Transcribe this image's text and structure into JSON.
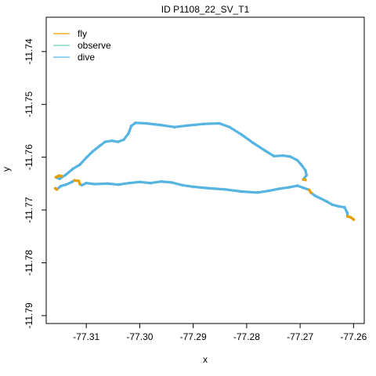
{
  "chart_data": {
    "type": "line",
    "title": "ID P1108_22_SV_T1",
    "xlabel": "x",
    "ylabel": "y",
    "xlim": [
      -77.3175,
      -77.258
    ],
    "ylim": [
      -11.7915,
      -11.7335
    ],
    "xticks": [
      -77.31,
      -77.3,
      -77.29,
      -77.28,
      -77.27,
      -77.26
    ],
    "xtick_labels": [
      "-77.31",
      "-77.30",
      "-77.29",
      "-77.28",
      "-77.27",
      "-77.26"
    ],
    "yticks": [
      -11.74,
      -11.75,
      -11.76,
      -11.77,
      -11.78,
      -11.79
    ],
    "ytick_labels": [
      "-11.74",
      "-11.75",
      "-11.76",
      "-11.77",
      "-11.78",
      "-11.79"
    ],
    "legend_position": "top-left",
    "series": [
      {
        "name": "fly",
        "color": "#E69F00",
        "segments": [
          [
            [
              -77.3157,
              -11.7638
            ],
            [
              -77.3151,
              -11.7635
            ],
            [
              -77.3146,
              -11.7636
            ]
          ],
          [
            [
              -77.3158,
              -11.7659
            ],
            [
              -77.3155,
              -11.7661
            ]
          ],
          [
            [
              -77.3122,
              -11.7644
            ],
            [
              -77.3114,
              -11.7645
            ],
            [
              -77.3112,
              -11.7651
            ]
          ],
          [
            [
              -77.2694,
              -11.7642
            ],
            [
              -77.269,
              -11.7643
            ]
          ],
          [
            [
              -77.2683,
              -11.7662
            ],
            [
              -77.268,
              -11.7667
            ]
          ],
          [
            [
              -77.2611,
              -11.7712
            ],
            [
              -77.2605,
              -11.7714
            ],
            [
              -77.26,
              -11.7718
            ]
          ]
        ]
      },
      {
        "name": "observe",
        "color": "#6ACFC1",
        "segments": []
      },
      {
        "name": "dive",
        "color": "#56B4E0",
        "segments": [
          [
            [
              -77.3157,
              -11.7638
            ],
            [
              -77.315,
              -11.7641
            ],
            [
              -77.3138,
              -11.7633
            ],
            [
              -77.3125,
              -11.7622
            ],
            [
              -77.3112,
              -11.7614
            ],
            [
              -77.31,
              -11.7601
            ],
            [
              -77.3088,
              -11.7589
            ],
            [
              -77.3074,
              -11.7578
            ],
            [
              -77.3065,
              -11.7571
            ],
            [
              -77.3052,
              -11.7569
            ],
            [
              -77.3041,
              -11.7571
            ],
            [
              -77.303,
              -11.7567
            ],
            [
              -77.3021,
              -11.7555
            ],
            [
              -77.3016,
              -11.7541
            ],
            [
              -77.3008,
              -11.7535
            ],
            [
              -77.2988,
              -11.7536
            ],
            [
              -77.2962,
              -11.7539
            ],
            [
              -77.2935,
              -11.7543
            ],
            [
              -77.291,
              -11.754
            ],
            [
              -77.288,
              -11.7537
            ],
            [
              -77.2851,
              -11.7536
            ],
            [
              -77.2832,
              -11.7543
            ],
            [
              -77.281,
              -11.7557
            ],
            [
              -77.2788,
              -11.7573
            ],
            [
              -77.2765,
              -11.7588
            ],
            [
              -77.2749,
              -11.7598
            ],
            [
              -77.2732,
              -11.7597
            ],
            [
              -77.2718,
              -11.7599
            ],
            [
              -77.2705,
              -11.7606
            ],
            [
              -77.2698,
              -11.7614
            ],
            [
              -77.269,
              -11.7625
            ],
            [
              -77.2688,
              -11.7634
            ],
            [
              -77.2694,
              -11.7642
            ]
          ],
          [
            [
              -77.3155,
              -11.7661
            ],
            [
              -77.3148,
              -11.7655
            ],
            [
              -77.3138,
              -11.7652
            ],
            [
              -77.3127,
              -11.7647
            ],
            [
              -77.3122,
              -11.7644
            ]
          ],
          [
            [
              -77.3112,
              -11.7651
            ],
            [
              -77.3108,
              -11.7653
            ],
            [
              -77.31,
              -11.7649
            ],
            [
              -77.3085,
              -11.7651
            ],
            [
              -77.306,
              -11.765
            ],
            [
              -77.304,
              -11.7652
            ],
            [
              -77.302,
              -11.7649
            ],
            [
              -77.3,
              -11.7647
            ],
            [
              -77.298,
              -11.7649
            ],
            [
              -77.296,
              -11.7646
            ],
            [
              -77.294,
              -11.7648
            ],
            [
              -77.292,
              -11.7653
            ],
            [
              -77.29,
              -11.7656
            ],
            [
              -77.287,
              -11.7659
            ],
            [
              -77.284,
              -11.7661
            ],
            [
              -77.281,
              -11.7665
            ],
            [
              -77.278,
              -11.7667
            ],
            [
              -77.276,
              -11.7664
            ],
            [
              -77.274,
              -11.766
            ],
            [
              -77.272,
              -11.7657
            ],
            [
              -77.2705,
              -11.7654
            ],
            [
              -77.2694,
              -11.7658
            ],
            [
              -77.2683,
              -11.7662
            ]
          ],
          [
            [
              -77.268,
              -11.7667
            ],
            [
              -77.2672,
              -11.7673
            ],
            [
              -77.2662,
              -11.7678
            ],
            [
              -77.265,
              -11.7684
            ],
            [
              -77.264,
              -11.769
            ],
            [
              -77.2628,
              -11.7693
            ],
            [
              -77.2617,
              -11.7695
            ],
            [
              -77.2612,
              -11.7705
            ],
            [
              -77.2611,
              -11.7712
            ]
          ]
        ]
      }
    ]
  }
}
